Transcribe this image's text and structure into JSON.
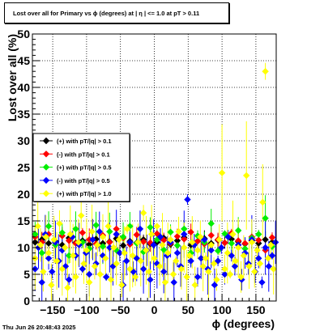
{
  "chart_data": {
    "type": "scatter",
    "title": "Lost over all for Primary vs ϕ (degrees) at |  η  | <= 1.0 at pT > 0.11",
    "xlabel": "ϕ (degrees)",
    "ylabel": "Lost over all (%)",
    "xlim": [
      -180,
      180
    ],
    "ylim": [
      0,
      50
    ],
    "xticks": [
      -150,
      -100,
      -50,
      0,
      50,
      100,
      150
    ],
    "xtick_labels": [
      "−150",
      "−100",
      "−50",
      "0",
      "50",
      "100",
      "150"
    ],
    "yticks": [
      0,
      5,
      10,
      15,
      20,
      25,
      30,
      35,
      40,
      45,
      50
    ],
    "ytick_labels": [
      "0",
      "5",
      "10",
      "15",
      "20",
      "25",
      "30",
      "35",
      "40",
      "45",
      "50"
    ],
    "grid": true,
    "legend_position": "left-middle",
    "timestamp": "Thu Jun 26 20:48:43 2025",
    "series": [
      {
        "name": "(+) with pT/|q| > 0.1",
        "color": "#000000",
        "points": [
          [
            -176,
            11.0
          ],
          [
            -166,
            11.5
          ],
          [
            -156,
            10.8
          ],
          [
            -146,
            11.2
          ],
          [
            -136,
            10.5
          ],
          [
            -126,
            11.8
          ],
          [
            -116,
            10.9
          ],
          [
            -106,
            11.3
          ],
          [
            -96,
            10.6
          ],
          [
            -86,
            11.6
          ],
          [
            -76,
            10.8
          ],
          [
            -66,
            11.1
          ],
          [
            -56,
            11.7
          ],
          [
            -46,
            10.4
          ],
          [
            -36,
            11.2
          ],
          [
            -26,
            10.9
          ],
          [
            -16,
            11.5
          ],
          [
            -6,
            10.7
          ],
          [
            4,
            11.0
          ],
          [
            14,
            11.8
          ],
          [
            24,
            10.6
          ],
          [
            34,
            11.3
          ],
          [
            44,
            11.9
          ],
          [
            54,
            10.5
          ],
          [
            64,
            11.2
          ],
          [
            74,
            11.7
          ],
          [
            84,
            10.8
          ],
          [
            94,
            11.4
          ],
          [
            104,
            10.9
          ],
          [
            114,
            11.6
          ],
          [
            124,
            11.1
          ],
          [
            134,
            10.7
          ],
          [
            144,
            11.3
          ],
          [
            154,
            10.8
          ],
          [
            164,
            11.5
          ],
          [
            174,
            11.0
          ]
        ]
      },
      {
        "name": "(-) with pT/|q| > 0.1",
        "color": "#ff0000",
        "points": [
          [
            -176,
            12.0
          ],
          [
            -166,
            11.0
          ],
          [
            -156,
            12.5
          ],
          [
            -146,
            10.5
          ],
          [
            -136,
            12.2
          ],
          [
            -126,
            11.3
          ],
          [
            -116,
            10.8
          ],
          [
            -106,
            12.8
          ],
          [
            -96,
            11.5
          ],
          [
            -86,
            10.7
          ],
          [
            -76,
            12.3
          ],
          [
            -66,
            11.0
          ],
          [
            -56,
            13.5
          ],
          [
            -46,
            11.8
          ],
          [
            -36,
            10.6
          ],
          [
            -26,
            12.4
          ],
          [
            -16,
            11.1
          ],
          [
            -6,
            10.9
          ],
          [
            4,
            12.6
          ],
          [
            14,
            11.4
          ],
          [
            24,
            10.8
          ],
          [
            34,
            12.1
          ],
          [
            44,
            11.6
          ],
          [
            54,
            12.9
          ],
          [
            64,
            11.2
          ],
          [
            74,
            10.7
          ],
          [
            84,
            12.3
          ],
          [
            94,
            11.5
          ],
          [
            104,
            10.9
          ],
          [
            114,
            12.7
          ],
          [
            124,
            11.3
          ],
          [
            134,
            10.8
          ],
          [
            144,
            12.0
          ],
          [
            154,
            11.4
          ],
          [
            164,
            9.5
          ],
          [
            174,
            11.9
          ]
        ]
      },
      {
        "name": "(+) with pT/|q| > 0.5",
        "color": "#00ee00",
        "points": [
          [
            -176,
            12.5
          ],
          [
            -166,
            9.0
          ],
          [
            -156,
            14.0
          ],
          [
            -146,
            10.5
          ],
          [
            -136,
            12.8
          ],
          [
            -126,
            8.5
          ],
          [
            -116,
            13.5
          ],
          [
            -106,
            11.0
          ],
          [
            -96,
            9.8
          ],
          [
            -86,
            14.2
          ],
          [
            -76,
            10.2
          ],
          [
            -66,
            13.0
          ],
          [
            -56,
            9.5
          ],
          [
            -46,
            12.0
          ],
          [
            -36,
            14.0
          ],
          [
            -26,
            10.8
          ],
          [
            -16,
            9.2
          ],
          [
            -6,
            13.8
          ],
          [
            4,
            11.5
          ],
          [
            14,
            9.6
          ],
          [
            24,
            12.9
          ],
          [
            34,
            10.4
          ],
          [
            44,
            13.5
          ],
          [
            54,
            9.0
          ],
          [
            64,
            12.2
          ],
          [
            74,
            11.0
          ],
          [
            84,
            14.5
          ],
          [
            94,
            9.4
          ],
          [
            104,
            12.6
          ],
          [
            114,
            10.8
          ],
          [
            124,
            13.2
          ],
          [
            134,
            9.8
          ],
          [
            144,
            11.8
          ],
          [
            154,
            12.5
          ],
          [
            164,
            15.5
          ],
          [
            174,
            10.2
          ]
        ]
      },
      {
        "name": "(-) with pT/|q| > 0.5",
        "color": "#0000ff",
        "points": [
          [
            -176,
            6.0
          ],
          [
            -171,
            10.0
          ],
          [
            -166,
            3.5
          ],
          [
            -161,
            12.5
          ],
          [
            -156,
            8.0
          ],
          [
            -151,
            5.5
          ],
          [
            -146,
            11.0
          ],
          [
            -141,
            7.5
          ],
          [
            -136,
            9.5
          ],
          [
            -131,
            6.5
          ],
          [
            -126,
            4.0
          ],
          [
            -121,
            12.0
          ],
          [
            -116,
            8.5
          ],
          [
            -111,
            10.5
          ],
          [
            -106,
            6.0
          ],
          [
            -101,
            9.0
          ],
          [
            -96,
            5.0
          ],
          [
            -91,
            11.5
          ],
          [
            -86,
            7.0
          ],
          [
            -81,
            13.0
          ],
          [
            -76,
            8.5
          ],
          [
            -71,
            4.5
          ],
          [
            -66,
            10.0
          ],
          [
            -61,
            6.5
          ],
          [
            -56,
            12.5
          ],
          [
            -51,
            9.0
          ],
          [
            -46,
            3.0
          ],
          [
            -41,
            7.5
          ],
          [
            -36,
            11.0
          ],
          [
            -31,
            5.5
          ],
          [
            -26,
            8.0
          ],
          [
            -21,
            13.5
          ],
          [
            -16,
            6.0
          ],
          [
            -11,
            9.5
          ],
          [
            -6,
            4.0
          ],
          [
            -1,
            10.5
          ],
          [
            4,
            7.0
          ],
          [
            9,
            12.0
          ],
          [
            14,
            5.5
          ],
          [
            19,
            8.5
          ],
          [
            24,
            11.0
          ],
          [
            29,
            3.5
          ],
          [
            34,
            9.0
          ],
          [
            39,
            6.5
          ],
          [
            44,
            12.5
          ],
          [
            49,
            19.0
          ],
          [
            54,
            7.5
          ],
          [
            59,
            10.5
          ],
          [
            64,
            4.5
          ],
          [
            69,
            8.0
          ],
          [
            74,
            11.5
          ],
          [
            79,
            6.0
          ],
          [
            84,
            9.5
          ],
          [
            89,
            3.0
          ],
          [
            94,
            7.5
          ],
          [
            99,
            10.0
          ],
          [
            104,
            5.0
          ],
          [
            109,
            12.0
          ],
          [
            114,
            8.5
          ],
          [
            119,
            6.5
          ],
          [
            124,
            10.5
          ],
          [
            129,
            4.0
          ],
          [
            134,
            9.0
          ],
          [
            139,
            7.0
          ],
          [
            144,
            11.5
          ],
          [
            149,
            5.5
          ],
          [
            154,
            8.0
          ],
          [
            159,
            3.5
          ],
          [
            164,
            10.0
          ],
          [
            169,
            6.5
          ],
          [
            174,
            8.5
          ],
          [
            179,
            11.0
          ]
        ]
      },
      {
        "name": "(+) with pT/|q| > 1.0",
        "color": "#ffff00",
        "points": [
          [
            -176,
            8.0
          ],
          [
            -172,
            14.0
          ],
          [
            -168,
            10.5
          ],
          [
            -164,
            5.5
          ],
          [
            -160,
            12.0
          ],
          [
            -156,
            9.0
          ],
          [
            -152,
            3.0
          ],
          [
            -148,
            11.5
          ],
          [
            -144,
            7.5
          ],
          [
            -140,
            14.5
          ],
          [
            -136,
            6.0
          ],
          [
            -132,
            10.0
          ],
          [
            -128,
            2.5
          ],
          [
            -124,
            12.5
          ],
          [
            -120,
            8.5
          ],
          [
            -116,
            4.5
          ],
          [
            -112,
            11.0
          ],
          [
            -108,
            16.0
          ],
          [
            -104,
            7.0
          ],
          [
            -100,
            9.5
          ],
          [
            -96,
            3.5
          ],
          [
            -92,
            13.0
          ],
          [
            -88,
            6.5
          ],
          [
            -84,
            10.5
          ],
          [
            -80,
            5.0
          ],
          [
            -76,
            12.0
          ],
          [
            -72,
            8.0
          ],
          [
            -68,
            14.0
          ],
          [
            -64,
            4.0
          ],
          [
            -60,
            10.0
          ],
          [
            -56,
            7.0
          ],
          [
            -52,
            11.5
          ],
          [
            -48,
            3.0
          ],
          [
            -44,
            9.0
          ],
          [
            -40,
            13.5
          ],
          [
            -36,
            6.0
          ],
          [
            -32,
            8.5
          ],
          [
            -28,
            4.5
          ],
          [
            -24,
            11.0
          ],
          [
            -20,
            7.5
          ],
          [
            -16,
            16.5
          ],
          [
            -12,
            9.5
          ],
          [
            -8,
            5.5
          ],
          [
            -4,
            12.5
          ],
          [
            0,
            8.0
          ],
          [
            4,
            14.0
          ],
          [
            8,
            6.5
          ],
          [
            12,
            10.5
          ],
          [
            16,
            3.5
          ],
          [
            20,
            9.0
          ],
          [
            24,
            11.5
          ],
          [
            28,
            5.0
          ],
          [
            32,
            7.5
          ],
          [
            36,
            13.0
          ],
          [
            40,
            6.0
          ],
          [
            44,
            10.0
          ],
          [
            48,
            4.5
          ],
          [
            52,
            8.5
          ],
          [
            56,
            11.0
          ],
          [
            60,
            3.0
          ],
          [
            64,
            9.5
          ],
          [
            68,
            12.0
          ],
          [
            72,
            6.5
          ],
          [
            76,
            8.0
          ],
          [
            80,
            5.5
          ],
          [
            84,
            10.5
          ],
          [
            88,
            7.0
          ],
          [
            92,
            4.0
          ],
          [
            96,
            11.5
          ],
          [
            100,
            24.0
          ],
          [
            104,
            6.0
          ],
          [
            108,
            9.0
          ],
          [
            112,
            5.0
          ],
          [
            116,
            12.5
          ],
          [
            120,
            7.5
          ],
          [
            124,
            10.0
          ],
          [
            128,
            4.5
          ],
          [
            132,
            8.5
          ],
          [
            136,
            23.5
          ],
          [
            140,
            6.5
          ],
          [
            144,
            11.0
          ],
          [
            148,
            5.5
          ],
          [
            152,
            9.5
          ],
          [
            156,
            7.0
          ],
          [
            160,
            18.5
          ],
          [
            164,
            43.0
          ],
          [
            168,
            8.0
          ],
          [
            172,
            10.5
          ],
          [
            176,
            6.0
          ]
        ]
      }
    ]
  }
}
